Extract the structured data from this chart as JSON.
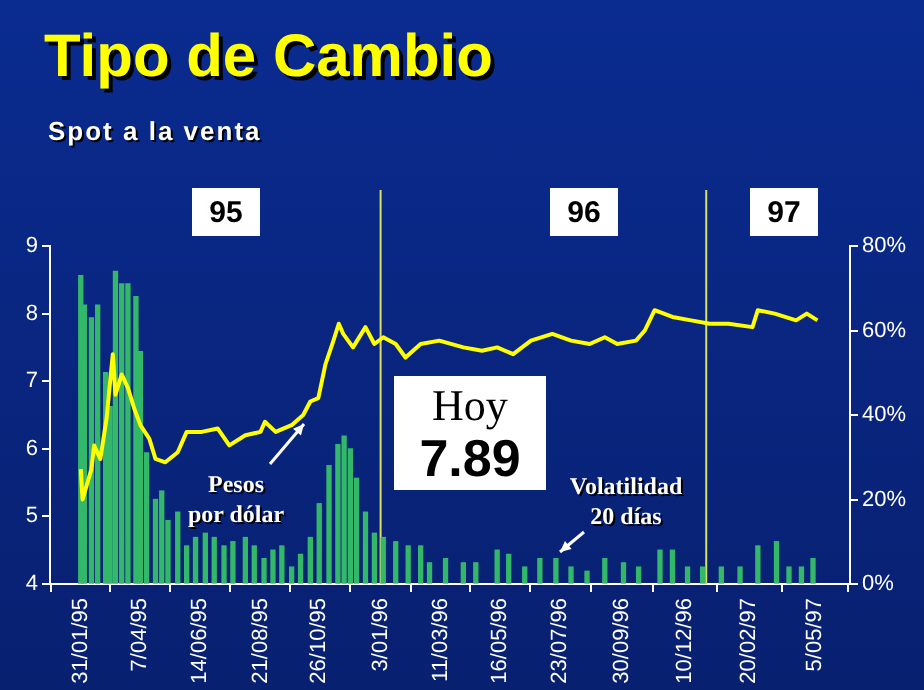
{
  "chart_data": {
    "type": "line",
    "title": "Tipo de Cambio",
    "subtitle": "Spot a la venta",
    "xlim": [
      "1995-01-31",
      "1997-05-10"
    ],
    "xticks": [
      {
        "value": "1995-01-31",
        "label": "31/01/95"
      },
      {
        "value": "1995-04-07",
        "label": "7/04/95"
      },
      {
        "value": "1995-06-14",
        "label": "14/06/95"
      },
      {
        "value": "1995-08-21",
        "label": "21/08/95"
      },
      {
        "value": "1995-10-26",
        "label": "26/10/95"
      },
      {
        "value": "1996-01-03",
        "label": "3/01/96"
      },
      {
        "value": "1996-03-11",
        "label": "11/03/96"
      },
      {
        "value": "1996-05-16",
        "label": "16/05/96"
      },
      {
        "value": "1996-07-23",
        "label": "23/07/96"
      },
      {
        "value": "1996-09-30",
        "label": "30/09/96"
      },
      {
        "value": "1996-12-10",
        "label": "10/12/96"
      },
      {
        "value": "1997-02-20",
        "label": "20/02/97"
      },
      {
        "value": "1997-05-05",
        "label": "5/05/97"
      }
    ],
    "ylim": [
      4,
      9
    ],
    "yticks": [
      4,
      5,
      6,
      7,
      8,
      9
    ],
    "y2lim": [
      0,
      80
    ],
    "y2ticks": [
      {
        "value": 0,
        "label": "0%"
      },
      {
        "value": 20,
        "label": "20%"
      },
      {
        "value": 40,
        "label": "40%"
      },
      {
        "value": 60,
        "label": "60%"
      },
      {
        "value": 80,
        "label": "80%"
      }
    ],
    "series": [
      {
        "type": "bar",
        "axis": "y2",
        "color": "#33b86a",
        "x": [
          "1995-01-31",
          "1995-02-04",
          "1995-02-12",
          "1995-02-19",
          "1995-02-28",
          "1995-03-05",
          "1995-03-11",
          "1995-03-18",
          "1995-03-25",
          "1995-04-03",
          "1995-04-08",
          "1995-04-15",
          "1995-04-25",
          "1995-05-02",
          "1995-05-09",
          "1995-05-20",
          "1995-05-30",
          "1995-06-09",
          "1995-06-20",
          "1995-06-30",
          "1995-07-11",
          "1995-07-21",
          "1995-08-04",
          "1995-08-14",
          "1995-08-25",
          "1995-09-04",
          "1995-09-14",
          "1995-09-25",
          "1995-10-05",
          "1995-10-16",
          "1995-10-26",
          "1995-11-06",
          "1995-11-16",
          "1995-11-23",
          "1995-11-30",
          "1995-12-07",
          "1995-12-17",
          "1995-12-27",
          "1996-01-06",
          "1996-01-20",
          "1996-02-03",
          "1996-02-17",
          "1996-02-27",
          "1996-03-16",
          "1996-04-05",
          "1996-04-19",
          "1996-05-13",
          "1996-05-26",
          "1996-06-13",
          "1996-06-30",
          "1996-07-18",
          "1996-08-04",
          "1996-08-22",
          "1996-09-11",
          "1996-10-02",
          "1996-10-19",
          "1996-11-12",
          "1996-11-26",
          "1996-12-13",
          "1996-12-30",
          "1997-01-20",
          "1997-02-10",
          "1997-03-02",
          "1997-03-23",
          "1997-04-06",
          "1997-04-20",
          "1997-05-03"
        ],
        "values": [
          73,
          66,
          63,
          66,
          50,
          42,
          74,
          71,
          71,
          68,
          55,
          31,
          20,
          22,
          15,
          17,
          9,
          11,
          12,
          11,
          9,
          10,
          11,
          9,
          6,
          8,
          9,
          4,
          7,
          11,
          19,
          28,
          33,
          35,
          32,
          25,
          17,
          12,
          11,
          10,
          9,
          9,
          5,
          6,
          5,
          5,
          8,
          7,
          4,
          6,
          6,
          4,
          3,
          6,
          5,
          4,
          8,
          8,
          4,
          4,
          4,
          4,
          9,
          10,
          4,
          4,
          6
        ]
      },
      {
        "color": "#ffff00",
        "x": [
          "1995-01-31",
          "1995-02-02",
          "1995-02-12",
          "1995-02-15",
          "1995-02-22",
          "1995-03-01",
          "1995-03-08",
          "1995-03-11",
          "1995-03-18",
          "1995-03-25",
          "1995-04-01",
          "1995-04-08",
          "1995-04-18",
          "1995-04-25",
          "1995-05-06",
          "1995-05-20",
          "1995-05-30",
          "1995-06-16",
          "1995-07-04",
          "1995-07-17",
          "1995-08-04",
          "1995-08-21",
          "1995-08-26",
          "1995-09-07",
          "1995-09-25",
          "1995-10-08",
          "1995-10-16",
          "1995-10-25",
          "1995-11-02",
          "1995-11-11",
          "1995-11-17",
          "1995-11-22",
          "1995-12-03",
          "1995-12-17",
          "1995-12-27",
          "1996-01-06",
          "1996-01-20",
          "1996-01-31",
          "1996-02-17",
          "1996-03-09",
          "1996-04-05",
          "1996-04-26",
          "1996-05-13",
          "1996-05-31",
          "1996-06-20",
          "1996-07-14",
          "1996-08-04",
          "1996-08-25",
          "1996-09-11",
          "1996-09-25",
          "1996-10-16",
          "1996-10-26",
          "1996-11-06",
          "1996-11-26",
          "1996-12-17",
          "1997-01-07",
          "1997-01-28",
          "1997-02-24",
          "1997-03-02",
          "1997-03-21",
          "1997-04-14",
          "1997-04-26",
          "1997-05-08"
        ],
        "values": [
          5.7,
          5.25,
          5.7,
          6.05,
          5.85,
          6.45,
          7.4,
          6.8,
          7.1,
          6.9,
          6.6,
          6.35,
          6.15,
          5.85,
          5.8,
          5.95,
          6.25,
          6.25,
          6.3,
          6.05,
          6.2,
          6.25,
          6.4,
          6.25,
          6.35,
          6.5,
          6.7,
          6.75,
          7.25,
          7.6,
          7.85,
          7.7,
          7.5,
          7.8,
          7.55,
          7.65,
          7.55,
          7.35,
          7.55,
          7.6,
          7.5,
          7.45,
          7.5,
          7.4,
          7.6,
          7.7,
          7.6,
          7.55,
          7.65,
          7.55,
          7.6,
          7.75,
          8.05,
          7.95,
          7.9,
          7.85,
          7.85,
          7.8,
          8.05,
          8.0,
          7.9,
          8.0,
          7.9
        ]
      }
    ],
    "ref_lines": [
      {
        "axis": "x",
        "value": "1996-01-03",
        "color": "#d8e060"
      },
      {
        "axis": "x",
        "value": "1997-01-03",
        "color": "#d8e060"
      }
    ],
    "annotations": [
      "95",
      "96",
      "97",
      "Pesos por dólar",
      "Volatilidad 20 días",
      "Hoy 7.89"
    ]
  }
}
